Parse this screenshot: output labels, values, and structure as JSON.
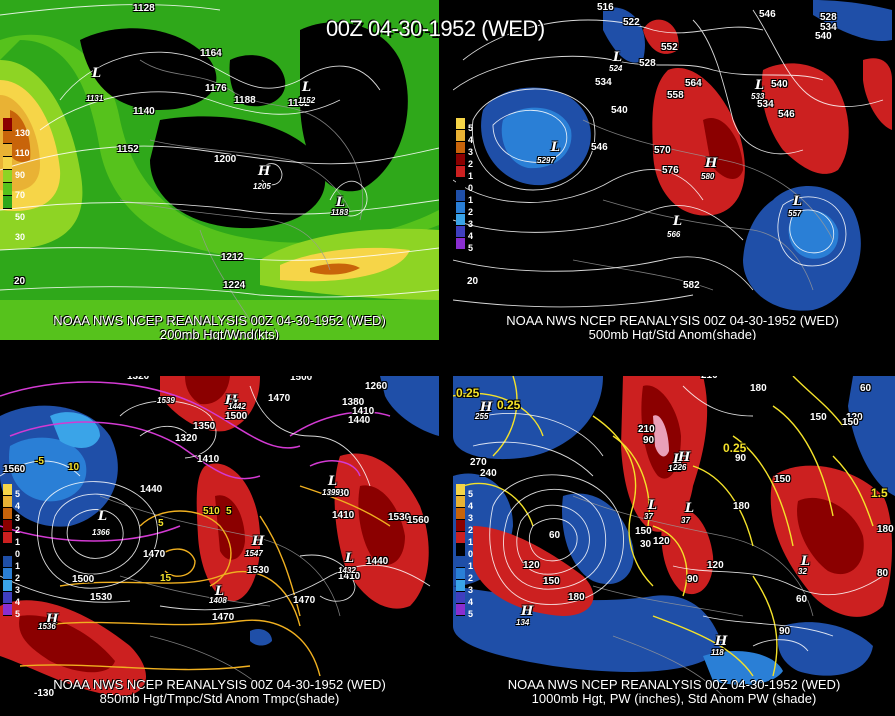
{
  "title": "00Z 04-30-1952 (WED)",
  "panels": [
    {
      "id": "200mb",
      "caption_top": "NOAA NWS NCEP REANALYSIS 00Z 04-30-1952 (WED)",
      "caption_bottom": "200mb Hgt/Wnd(kts)",
      "legend": [
        "130",
        "110",
        "90",
        "70",
        "50",
        "30"
      ],
      "legend_colors": [
        "#8b0000",
        "#c8640a",
        "#e9b234",
        "#f6d548",
        "#8ed424",
        "#56c21c",
        "#2fa81a"
      ],
      "contour_labels": [
        "1128",
        "1164",
        "1176",
        "1188",
        "1152",
        "1140",
        "1152",
        "1200",
        "1212",
        "1224"
      ],
      "systems": [
        {
          "type": "L",
          "value": "1131"
        },
        {
          "type": "L",
          "value": "1152"
        },
        {
          "type": "H",
          "value": "1205"
        },
        {
          "type": "L",
          "value": "1183"
        }
      ],
      "corner_label": "20"
    },
    {
      "id": "500mb",
      "caption_top": "NOAA NWS NCEP REANALYSIS 00Z 04-30-1952 (WED)",
      "caption_bottom": "500mb Hgt/Std Anom(shade)",
      "legend": [
        "5",
        "4",
        "3",
        "2",
        "1",
        "0",
        "1",
        "2",
        "3",
        "4",
        "5"
      ],
      "legend_colors": [
        "#f6d548",
        "#e9b234",
        "#c8640a",
        "#8b0000",
        "#cc2020",
        "#000000",
        "#1f4fa8",
        "#2a7fd6",
        "#3aa4e8",
        "#3f3fbf",
        "#8a2ed0"
      ],
      "contour_labels": [
        "516",
        "522",
        "528",
        "534",
        "540",
        "546",
        "552",
        "558",
        "564",
        "570",
        "576",
        "546",
        "528",
        "534",
        "540",
        "534",
        "540",
        "546",
        "582"
      ],
      "systems": [
        {
          "type": "L",
          "value": "524"
        },
        {
          "type": "L",
          "value": "5297"
        },
        {
          "type": "H",
          "value": "580"
        },
        {
          "type": "L",
          "value": "566"
        },
        {
          "type": "L",
          "value": "557"
        },
        {
          "type": "L",
          "value": "533"
        }
      ],
      "corner_label": "20"
    },
    {
      "id": "850mb",
      "caption_top": "NOAA NWS NCEP REANALYSIS 00Z 04-30-1952 (WED)",
      "caption_bottom": "850mb Hgt/Tmpc/Std Anom Tmpc(shade)",
      "legend": [
        "5",
        "4",
        "3",
        "2",
        "1",
        "0",
        "1",
        "2",
        "3",
        "4",
        "5"
      ],
      "legend_colors": [
        "#f6d548",
        "#e9b234",
        "#c8640a",
        "#8b0000",
        "#cc2020",
        "#000000",
        "#1f4fa8",
        "#2a7fd6",
        "#3aa4e8",
        "#3f3fbf",
        "#8a2ed0"
      ],
      "contour_labels": [
        "1320",
        "1500",
        "1260",
        "1380",
        "1410",
        "1440",
        "1500",
        "1470",
        "1320",
        "1350",
        "1410",
        "1560",
        "1440",
        "1380",
        "1470",
        "1500",
        "1530",
        "1530",
        "1470",
        "1440",
        "1410",
        "1530",
        "1560",
        "1410",
        "1470",
        "-5",
        "10",
        "5",
        "15",
        "510",
        "5"
      ],
      "systems": [
        {
          "type": "H",
          "value": "1539"
        },
        {
          "type": "L",
          "value": "1442"
        },
        {
          "type": "L",
          "value": "1366"
        },
        {
          "type": "H",
          "value": "1547"
        },
        {
          "type": "L",
          "value": "1432"
        },
        {
          "type": "L",
          "value": "1399"
        },
        {
          "type": "H",
          "value": "1536"
        },
        {
          "type": "L",
          "value": "1408"
        }
      ],
      "corner_label": "-130"
    },
    {
      "id": "1000mb",
      "caption_top": "NOAA NWS NCEP REANALYSIS 00Z 04-30-1952 (WED)",
      "caption_bottom": "1000mb Hgt, PW (inches), Std Anom PW (shade)",
      "legend": [
        "5",
        "4",
        "3",
        "2",
        "1",
        "0",
        "1",
        "2",
        "3",
        "4",
        "5"
      ],
      "legend_colors": [
        "#f6d548",
        "#e9b234",
        "#c8640a",
        "#8b0000",
        "#cc2020",
        "#000000",
        "#1f4fa8",
        "#2a7fd6",
        "#3aa4e8",
        "#3f3fbf",
        "#8a2ed0"
      ],
      "contour_labels": [
        "0.25",
        "0.25",
        "210",
        "180",
        "150",
        "120",
        "60",
        "150",
        "270",
        "240",
        "210",
        "90",
        "60",
        "120",
        "150",
        "180",
        "120",
        "90",
        "30",
        "150",
        "120",
        "90",
        "60",
        "90",
        "180",
        "0.25",
        "1.5",
        "180",
        "150"
      ],
      "systems": [
        {
          "type": "H",
          "value": "255"
        },
        {
          "type": "L",
          "value": "37"
        },
        {
          "type": "L",
          "value": "37"
        },
        {
          "type": "L",
          "value": "196"
        },
        {
          "type": "H",
          "value": "134"
        },
        {
          "type": "L",
          "value": "32"
        },
        {
          "type": "H",
          "value": "118"
        },
        {
          "type": "H",
          "value": "226"
        }
      ],
      "corner_label": "80"
    }
  ]
}
